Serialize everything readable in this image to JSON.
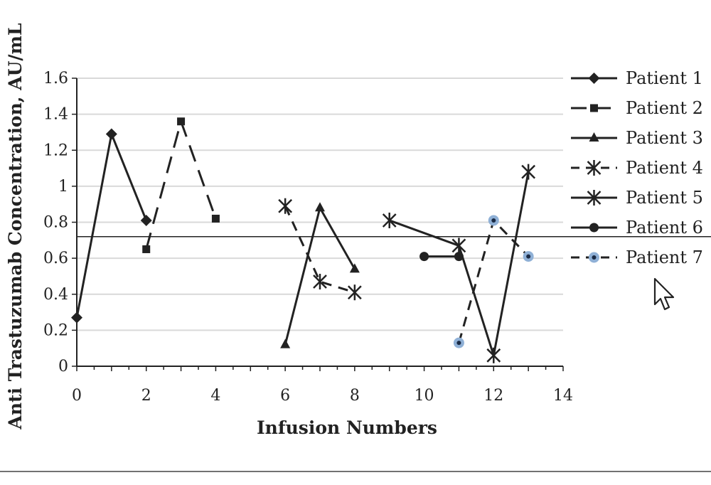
{
  "chart_data": {
    "type": "line",
    "title": "",
    "xlabel": "Infusion Numbers",
    "ylabel": "Anti Trastuzumab Concentration, AU/mL",
    "xlim": [
      0,
      14
    ],
    "ylim": [
      0,
      1.6
    ],
    "x_ticks": [
      0,
      2,
      4,
      6,
      8,
      10,
      12,
      14
    ],
    "y_ticks": [
      0,
      0.2,
      0.4,
      0.6,
      0.8,
      1,
      1.2,
      1.4,
      1.6
    ],
    "y_tick_labels": [
      "0",
      "0.2",
      "0.4",
      "0.6",
      "0.8",
      "1",
      "1.2",
      "1.4",
      "1.6"
    ],
    "grid": "horizontal",
    "reference_line": 0.72,
    "legend_position": "right",
    "series": [
      {
        "name": "Patient 1",
        "marker": "diamond",
        "dash": "solid",
        "x": [
          0,
          1,
          2
        ],
        "y": [
          0.27,
          1.29,
          0.81
        ]
      },
      {
        "name": "Patient 2",
        "marker": "square",
        "dash": "long-dash",
        "x": [
          2,
          3,
          4
        ],
        "y": [
          0.65,
          1.36,
          0.82
        ]
      },
      {
        "name": "Patient 3",
        "marker": "triangle",
        "dash": "solid",
        "x": [
          6,
          7,
          8
        ],
        "y": [
          0.12,
          0.88,
          0.54
        ]
      },
      {
        "name": "Patient 4",
        "marker": "star",
        "dash": "dash",
        "x": [
          6,
          7,
          8
        ],
        "y": [
          0.89,
          0.47,
          0.41
        ]
      },
      {
        "name": "Patient 5",
        "marker": "star",
        "dash": "solid",
        "x": [
          9,
          11,
          12,
          13
        ],
        "y": [
          0.81,
          0.67,
          0.06,
          1.08
        ]
      },
      {
        "name": "Patient 6",
        "marker": "circle",
        "dash": "solid",
        "x": [
          10,
          11
        ],
        "y": [
          0.61,
          0.61
        ]
      },
      {
        "name": "Patient 7",
        "marker": "dot-blue",
        "dash": "dash",
        "x": [
          11,
          12,
          13
        ],
        "y": [
          0.13,
          0.81,
          0.61
        ]
      }
    ],
    "colors": {
      "line": "#222222",
      "grid": "#d9d9d9",
      "patient7_marker": "#8fb0d6"
    }
  },
  "icons": {
    "cursor": "mouse-pointer-icon"
  }
}
